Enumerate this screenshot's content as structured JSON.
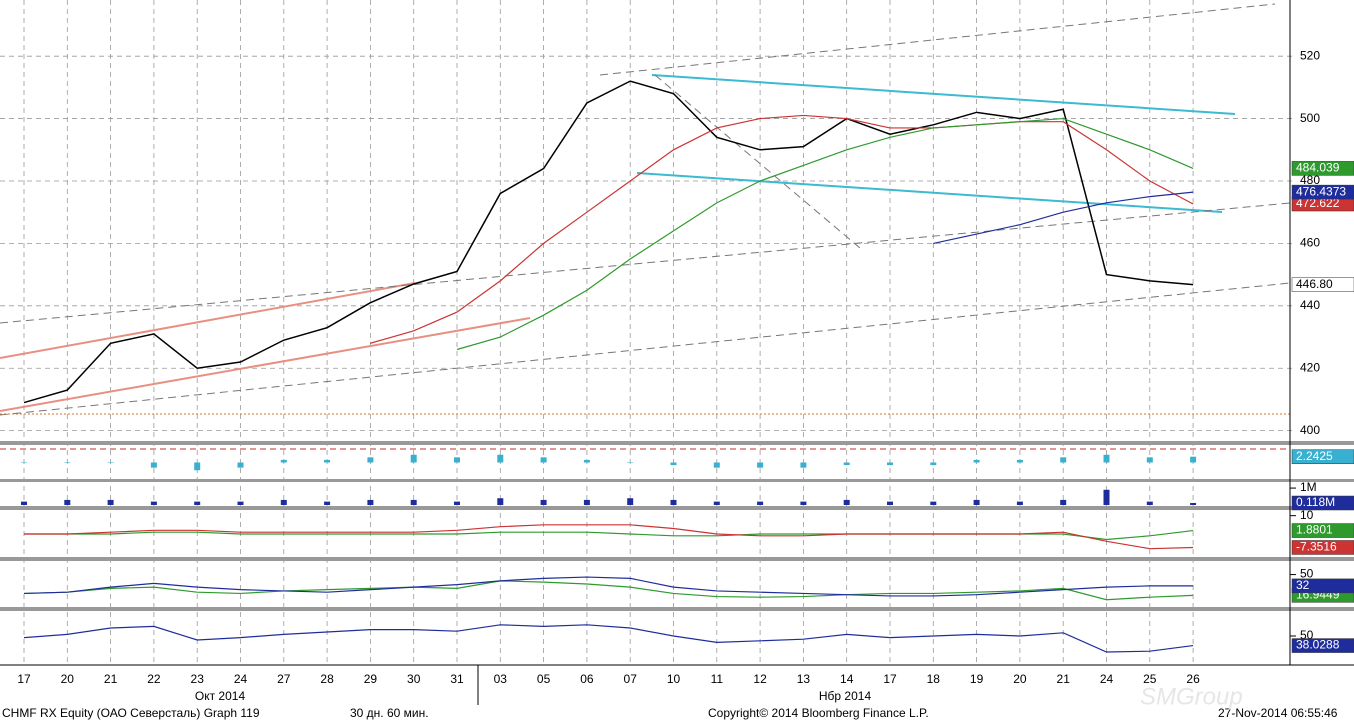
{
  "chart_data": [
    {
      "type": "line",
      "categories": [
        "17",
        "20",
        "21",
        "22",
        "23",
        "24",
        "27",
        "28",
        "29",
        "30",
        "31",
        "03",
        "05",
        "06",
        "07",
        "10",
        "11",
        "12",
        "13",
        "14",
        "17",
        "18",
        "19",
        "20",
        "21",
        "24",
        "25",
        "26"
      ],
      "x_groups": [
        "Окт 2014",
        "Нбр 2014"
      ],
      "ylim": [
        397,
        538
      ],
      "yticks": [
        400,
        420,
        440,
        460,
        480,
        500,
        520
      ],
      "grid": true,
      "series": [
        {
          "color": "#000000",
          "values": [
            409,
            413,
            428,
            431,
            420,
            422,
            429,
            433,
            441,
            447,
            451,
            476,
            484,
            505,
            512,
            508,
            494,
            490,
            491,
            500,
            495,
            498,
            502,
            500,
            503,
            450,
            448,
            446.8
          ],
          "value_labels": [
            null,
            null,
            null,
            null,
            null,
            null,
            null,
            null,
            null,
            null,
            null,
            null,
            null,
            null,
            null,
            null,
            null,
            null,
            null,
            null,
            null,
            null,
            null,
            null,
            null,
            null,
            null,
            "446.80"
          ]
        },
        {
          "color": "#cc3333",
          "values": [
            null,
            null,
            null,
            null,
            null,
            null,
            null,
            null,
            428,
            432,
            438,
            448,
            460,
            470,
            480,
            490,
            497,
            500,
            501,
            500,
            497,
            497,
            498,
            499,
            499,
            490,
            480,
            472.622
          ]
        },
        {
          "color": "#2e9a2e",
          "values": [
            null,
            null,
            null,
            null,
            null,
            null,
            null,
            null,
            null,
            null,
            426,
            430,
            437,
            445,
            455,
            464,
            473,
            480,
            485,
            490,
            494,
            497,
            498,
            499,
            500,
            495,
            490,
            484.039
          ]
        },
        {
          "color": "#1f2d9c",
          "values": [
            null,
            null,
            null,
            null,
            null,
            null,
            null,
            null,
            null,
            null,
            null,
            null,
            null,
            null,
            null,
            null,
            null,
            null,
            null,
            null,
            null,
            460,
            463,
            466,
            470,
            473,
            475,
            476.4373
          ]
        }
      ]
    },
    {
      "type": "bar",
      "ylim": [
        -6,
        6
      ],
      "yticks": [],
      "grid": false,
      "series": [
        {
          "color": "#3ab0d0",
          "values": [
            0,
            0,
            0,
            -2,
            -3,
            -2,
            1,
            1,
            2,
            3,
            2,
            3,
            2,
            1,
            0,
            -1,
            -2,
            -2,
            -2,
            -1,
            -1,
            -1,
            1,
            1,
            2,
            3,
            2,
            2.2425
          ]
        }
      ]
    },
    {
      "type": "bar",
      "ylim": [
        0,
        1.3
      ],
      "yticks": [
        {
          "value": 1,
          "label": "1M"
        }
      ],
      "grid": false,
      "series": [
        {
          "color": "#1f2d9c",
          "values": [
            0.2,
            0.3,
            0.3,
            0.2,
            0.2,
            0.2,
            0.3,
            0.2,
            0.3,
            0.3,
            0.2,
            0.4,
            0.3,
            0.3,
            0.4,
            0.3,
            0.2,
            0.2,
            0.2,
            0.3,
            0.2,
            0.2,
            0.3,
            0.2,
            0.3,
            0.9,
            0.2,
            0.118
          ],
          "value_labels": [
            null,
            null,
            null,
            null,
            null,
            null,
            null,
            null,
            null,
            null,
            null,
            null,
            null,
            null,
            null,
            null,
            null,
            null,
            null,
            null,
            null,
            null,
            null,
            null,
            null,
            null,
            null,
            "0.118M"
          ]
        }
      ]
    },
    {
      "type": "line",
      "ylim": [
        -12,
        12
      ],
      "yticks": [
        10
      ],
      "grid": false,
      "series": [
        {
          "color": "#2e9a2e",
          "values": [
            0,
            0,
            0,
            1,
            1,
            0,
            0,
            0,
            0,
            0,
            0,
            1,
            1,
            1,
            0,
            -1,
            -1,
            0,
            0,
            0,
            0,
            0,
            0,
            0,
            0,
            -3,
            -1,
            1.8801
          ]
        },
        {
          "color": "#cc3333",
          "values": [
            0,
            0,
            1,
            2,
            2,
            1,
            1,
            1,
            1,
            1,
            2,
            4,
            5,
            5,
            5,
            3,
            0,
            -1,
            -1,
            0,
            0,
            0,
            0,
            0,
            1,
            -4,
            -8,
            -7.3516
          ]
        }
      ]
    },
    {
      "type": "line",
      "ylim": [
        0,
        70
      ],
      "yticks": [
        50
      ],
      "grid": false,
      "series": [
        {
          "color": "#2e9a2e",
          "values": [
            20,
            22,
            28,
            30,
            22,
            20,
            24,
            26,
            28,
            30,
            28,
            40,
            38,
            35,
            30,
            20,
            15,
            14,
            15,
            18,
            20,
            20,
            22,
            24,
            28,
            10,
            14,
            16.9449
          ]
        },
        {
          "color": "#1f2d9c",
          "values": [
            20,
            22,
            30,
            36,
            30,
            26,
            24,
            22,
            26,
            30,
            34,
            40,
            44,
            46,
            44,
            30,
            24,
            22,
            20,
            18,
            16,
            16,
            18,
            22,
            26,
            30,
            32,
            32
          ]
        }
      ]
    },
    {
      "type": "line",
      "ylim": [
        20,
        80
      ],
      "yticks": [
        50
      ],
      "grid": false,
      "series": [
        {
          "color": "#1f2d9c",
          "values": [
            48,
            52,
            60,
            62,
            45,
            48,
            52,
            55,
            58,
            58,
            56,
            64,
            62,
            64,
            60,
            50,
            42,
            44,
            46,
            52,
            48,
            50,
            52,
            50,
            54,
            30,
            31,
            38.0288
          ]
        }
      ]
    }
  ],
  "footer": {
    "ticker": "CHMF RX Equity (ОАО Северсталь) Graph 119",
    "period": "30 дн. 60 мин.",
    "copyright": "Copyright© 2014 Bloomberg Finance L.P.",
    "timestamp": "27-Nov-2014 06:55:46",
    "watermark": "SMGroup"
  }
}
